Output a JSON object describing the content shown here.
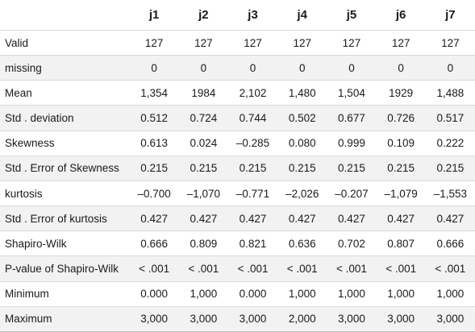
{
  "table": {
    "columns": [
      "",
      "j1",
      "j2",
      "j3",
      "j4",
      "j5",
      "j6",
      "j7"
    ],
    "rows": [
      {
        "label": "Valid",
        "values": [
          "127",
          "127",
          "127",
          "127",
          "127",
          "127",
          "127"
        ]
      },
      {
        "label": "missing",
        "values": [
          "0",
          "0",
          "0",
          "0",
          "0",
          "0",
          "0"
        ]
      },
      {
        "label": "Mean",
        "values": [
          "1,354",
          "1984",
          "2,102",
          "1,480",
          "1,504",
          "1929",
          "1,488"
        ]
      },
      {
        "label": "Std . deviation",
        "values": [
          "0.512",
          "0.724",
          "0.744",
          "0.502",
          "0.677",
          "0.726",
          "0.517"
        ]
      },
      {
        "label": "Skewness",
        "values": [
          "0.613",
          "0.024",
          "–0.285",
          "0.080",
          "0.999",
          "0.109",
          "0.222"
        ]
      },
      {
        "label": "Std . Error of Skewness",
        "values": [
          "0.215",
          "0.215",
          "0.215",
          "0.215",
          "0.215",
          "0.215",
          "0.215"
        ]
      },
      {
        "label": "kurtosis",
        "values": [
          "–0.700",
          "–1,070",
          "–0.771",
          "–2,026",
          "–0.207",
          "–1,079",
          "–1,553"
        ]
      },
      {
        "label": "Std . Error of kurtosis",
        "values": [
          "0.427",
          "0.427",
          "0.427",
          "0.427",
          "0.427",
          "0.427",
          "0.427"
        ]
      },
      {
        "label": "Shapiro-Wilk",
        "values": [
          "0.666",
          "0.809",
          "0.821",
          "0.636",
          "0.702",
          "0.807",
          "0.666"
        ]
      },
      {
        "label": "P-value of Shapiro-Wilk",
        "values": [
          "< .001",
          "< .001",
          "< .001",
          "< .001",
          "< .001",
          "< .001",
          "< .001"
        ]
      },
      {
        "label": "Minimum",
        "values": [
          "0.000",
          "1,000",
          "0.000",
          "1,000",
          "1,000",
          "1,000",
          "1,000"
        ]
      },
      {
        "label": "Maximum",
        "values": [
          "3,000",
          "3,000",
          "3,000",
          "2,000",
          "3,000",
          "3,000",
          "3,000"
        ]
      }
    ]
  },
  "colors": {
    "row_stripe": "#f2f2f2",
    "row_base": "#ffffff",
    "rule": "#d9d9d9"
  }
}
